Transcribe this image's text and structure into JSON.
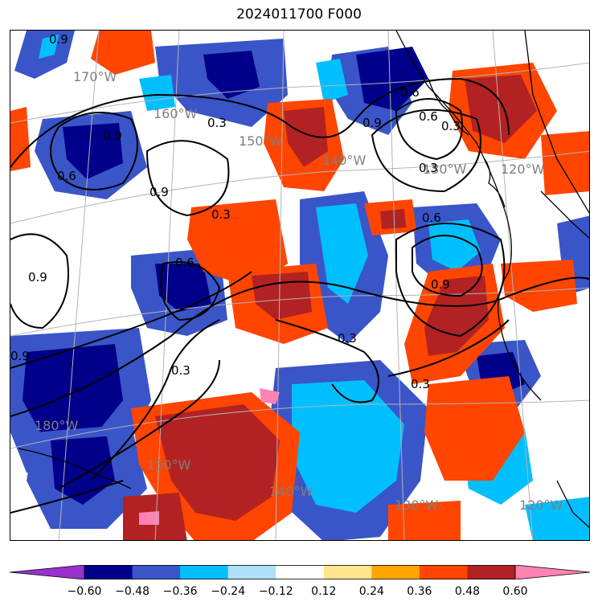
{
  "title": "2024011700 F000",
  "longitude_labels": [
    "170°W",
    "160°W",
    "150°W",
    "140°W",
    "130°W",
    "120°W",
    "180°W",
    "150°W",
    "140°W",
    "130°W",
    "120°W"
  ],
  "contour_labels": [
    "0.9",
    "0.9",
    "0.6",
    "0.9",
    "0.3",
    "0.9",
    "0.6",
    "0.9",
    "0.3",
    "0.9",
    "0.3",
    "0.6",
    "0.6",
    "0.9",
    "0.3",
    "0.3",
    "0.6",
    "0.3",
    "0.3"
  ],
  "colorbar": {
    "ticks": [
      "−0.60",
      "−0.48",
      "−0.36",
      "−0.24",
      "−0.12",
      "0.12",
      "0.24",
      "0.36",
      "0.48",
      "0.60"
    ],
    "colors": [
      "#9932cc",
      "#00008b",
      "#3a55c8",
      "#00bfff",
      "#b0e0f8",
      "#ffffff",
      "#ffe68c",
      "#ffa500",
      "#ff4500",
      "#b22222",
      "#ff82b4"
    ]
  },
  "colors": {
    "coastline": "#000000",
    "gridline": "#b4b4b4",
    "gridlabel": "#7f7f7f"
  }
}
